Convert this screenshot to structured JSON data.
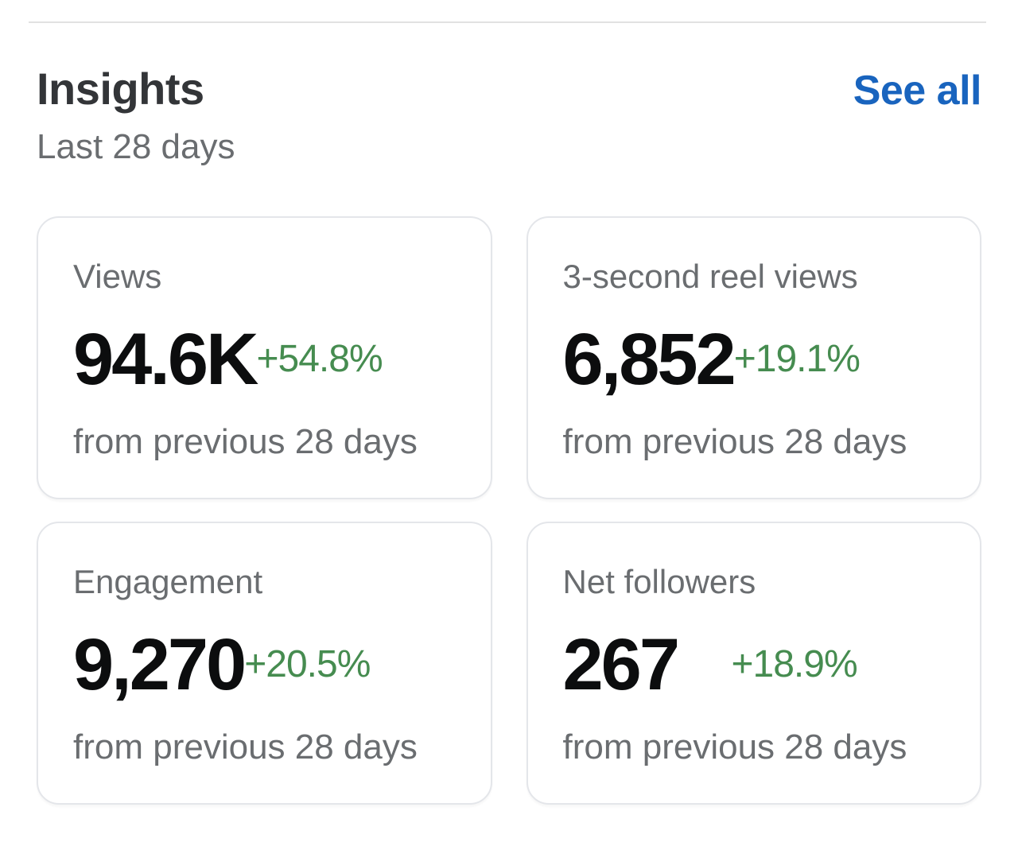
{
  "header": {
    "title": "Insights",
    "see_all_label": "See all",
    "subtitle": "Last 28 days"
  },
  "cards": [
    {
      "label": "Views",
      "value": "94.6K",
      "change": "+54.8%",
      "footer": "from previous 28 days"
    },
    {
      "label": "3-second reel views",
      "value": "6,852",
      "change": "+19.1%",
      "footer": "from previous 28 days"
    },
    {
      "label": "Engagement",
      "value": "9,270",
      "change": "+20.5%",
      "footer": "from previous 28 days"
    },
    {
      "label": "Net followers",
      "value": "267",
      "change": "+18.9%",
      "footer": "from previous 28 days"
    }
  ],
  "colors": {
    "accent_blue": "#1964BE",
    "positive_green": "#468C50"
  }
}
